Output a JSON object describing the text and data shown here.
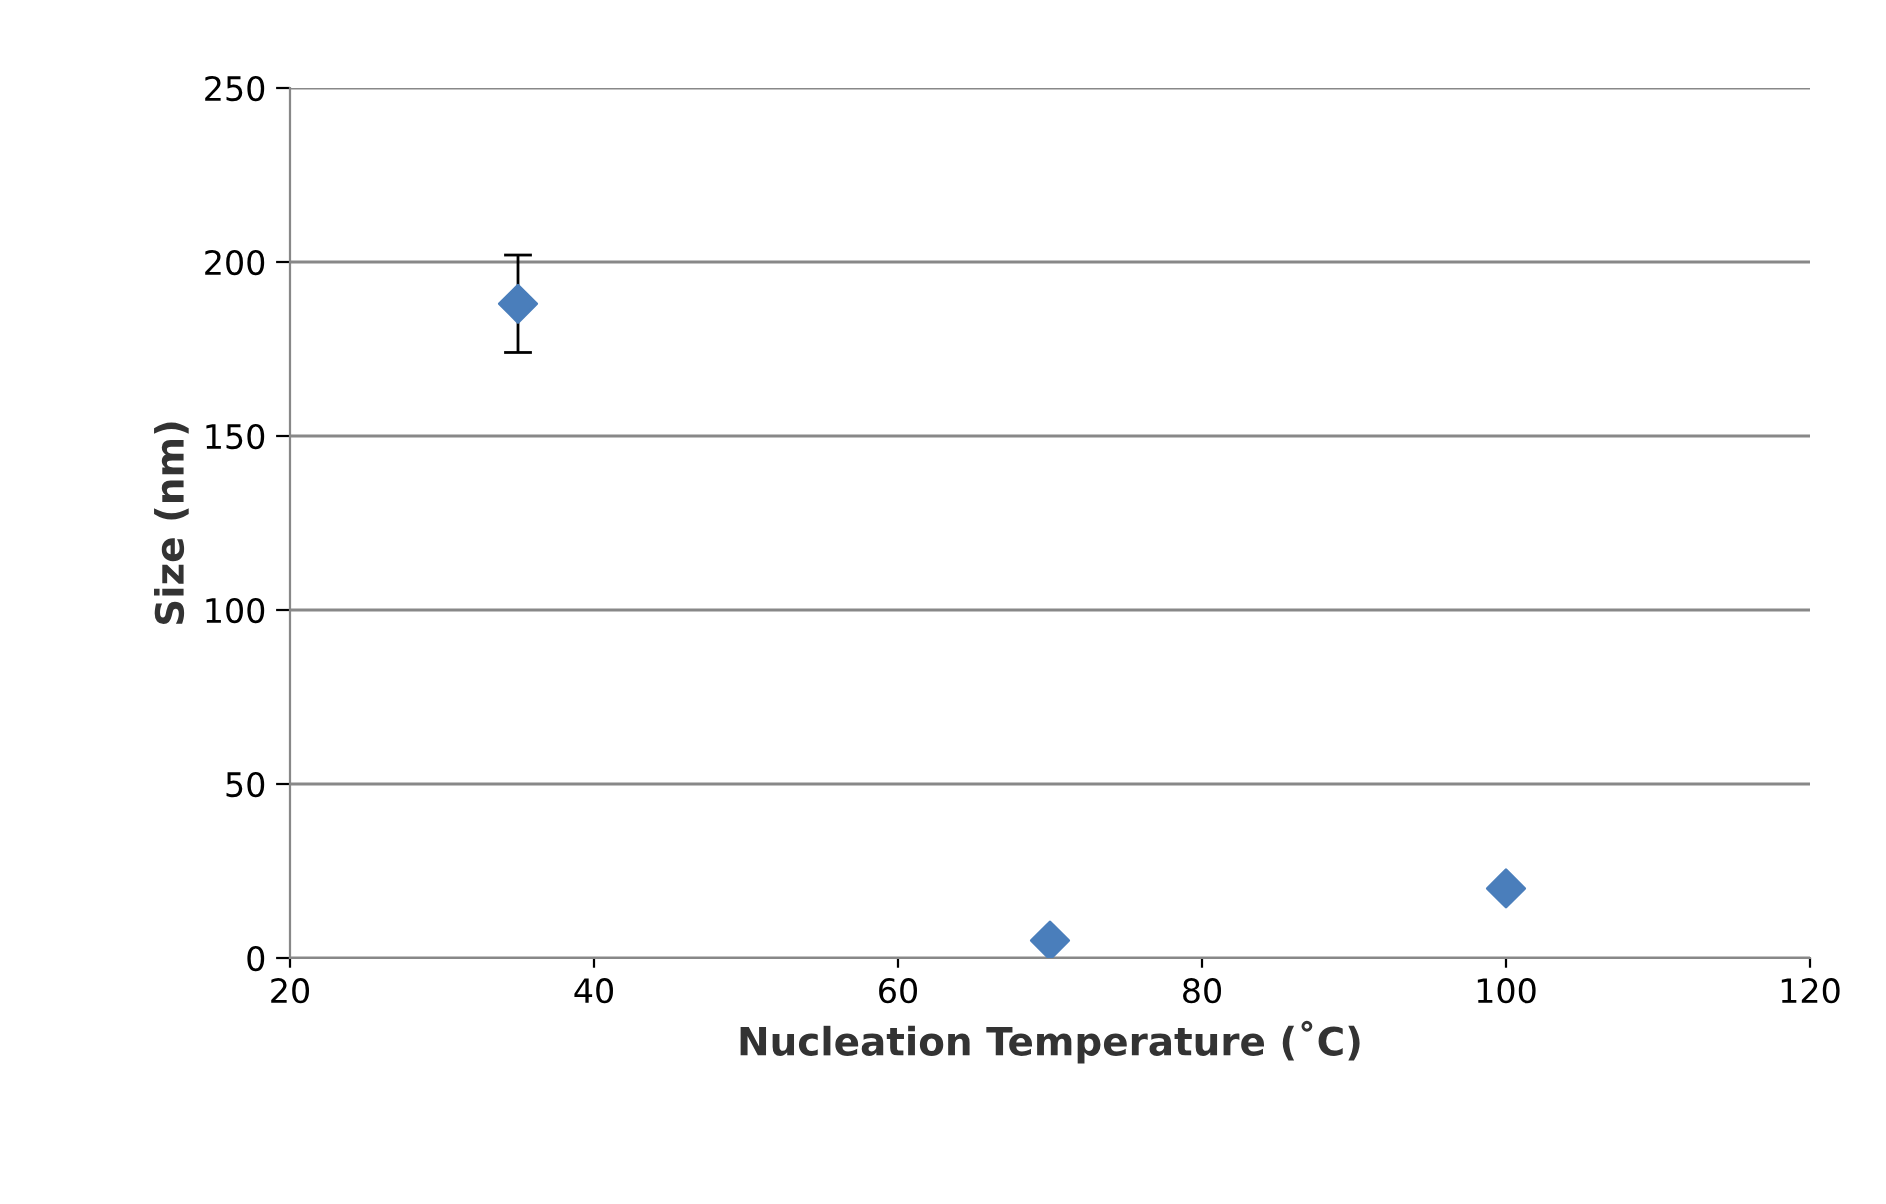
{
  "chart_data": {
    "type": "scatter",
    "xlabel": "Nucleation Temperature (˚C)",
    "ylabel": "Size (nm)",
    "x": [
      35,
      70,
      100
    ],
    "series": [
      {
        "color": "#4a7ebb",
        "values": [
          188,
          5,
          20
        ],
        "errors": [
          14,
          null,
          null
        ]
      }
    ],
    "marker": "diamond",
    "xlim": [
      20,
      120
    ],
    "xticks": [
      20,
      40,
      60,
      80,
      100,
      120
    ],
    "ylim": [
      0,
      250
    ],
    "yticks": [
      0,
      50,
      100,
      150,
      200,
      250
    ],
    "grid": "y"
  }
}
